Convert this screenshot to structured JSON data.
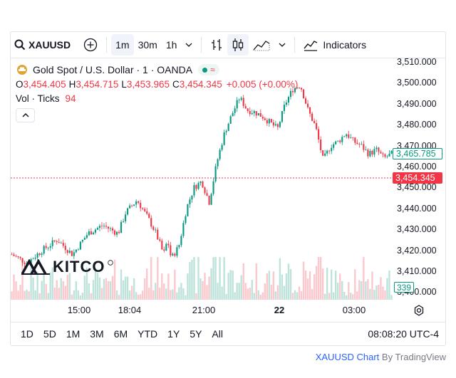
{
  "toolbar": {
    "symbol": "XAUUSD",
    "intervals": [
      "1m",
      "30m",
      "1h"
    ],
    "active_interval": "1m",
    "indicators_label": "Indicators"
  },
  "legend": {
    "title": "Gold Spot / U.S. Dollar · 1 · OANDA",
    "open_label": "O",
    "open": "3,454.405",
    "high_label": "H",
    "high": "3,454.715",
    "low_label": "L",
    "low": "3,453.965",
    "close_label": "C",
    "close": "3,454.345",
    "change": "+0.005 (+0.00%)",
    "vol_label": "Vol · Ticks",
    "vol": "94"
  },
  "price_axis": [
    "3,510.000",
    "3,500.000",
    "3,490.000",
    "3,480.000",
    "3,470.000",
    "3,460.000",
    "3,450.000",
    "3,440.000",
    "3,430.000",
    "3,420.000",
    "3,410.000",
    "3,400.000"
  ],
  "time_axis": [
    "15:00",
    "18:04",
    "21:00",
    "22",
    "03:00"
  ],
  "price_tags": {
    "tag1": "3,465.785",
    "tag2": "3,454.345",
    "volume": "339"
  },
  "watermark": "KITCO",
  "ranges": [
    "1D",
    "5D",
    "1M",
    "3M",
    "6M",
    "YTD",
    "1Y",
    "5Y",
    "All"
  ],
  "clock": "08:08:20 UTC-4",
  "attribution": {
    "link": "XAUUSD Chart",
    "suffix": " By TradingView"
  },
  "colors": {
    "up": "#089981",
    "down": "#f23645",
    "up_vol": "#bfe3db",
    "down_vol": "#fbc9cd"
  },
  "chart_data": {
    "type": "line",
    "ylim": [
      3400,
      3510
    ],
    "x_ticks": [
      "15:00",
      "18:04",
      "21:00",
      "22",
      "03:00"
    ],
    "x": [
      0,
      0.04,
      0.08,
      0.12,
      0.16,
      0.2,
      0.24,
      0.28,
      0.3,
      0.33,
      0.36,
      0.38,
      0.4,
      0.41,
      0.42,
      0.44,
      0.46,
      0.48,
      0.5,
      0.52,
      0.54,
      0.56,
      0.58,
      0.6,
      0.62,
      0.64,
      0.66,
      0.68,
      0.7,
      0.72,
      0.74,
      0.76,
      0.78,
      0.8,
      0.82,
      0.84,
      0.86,
      0.88,
      0.9,
      0.92,
      0.94,
      0.96,
      0.98,
      1.0
    ],
    "series": [
      {
        "values": [
          3418,
          3414,
          3420,
          3425,
          3418,
          3428,
          3432,
          3428,
          3438,
          3444,
          3435,
          3428,
          3418,
          3425,
          3416,
          3422,
          3440,
          3450,
          3453,
          3443,
          3462,
          3476,
          3485,
          3493,
          3487,
          3486,
          3484,
          3481,
          3478,
          3490,
          3497,
          3499,
          3487,
          3479,
          3463,
          3470,
          3472,
          3476,
          3472,
          3470,
          3466,
          3468,
          3464,
          3466
        ]
      }
    ]
  }
}
